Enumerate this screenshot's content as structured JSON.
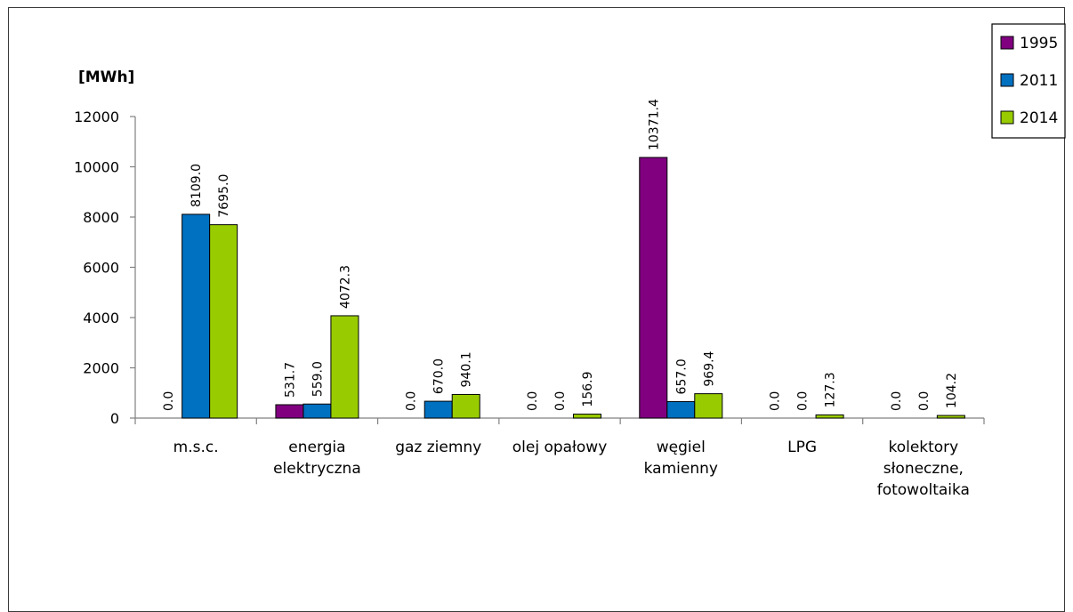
{
  "chart_data": {
    "type": "bar",
    "ylabel": "[MWh]",
    "ylim": [
      0,
      12000
    ],
    "yticks": [
      0,
      2000,
      4000,
      6000,
      8000,
      10000,
      12000
    ],
    "categories": [
      [
        "m.s.c."
      ],
      [
        "energia",
        "elektryczna"
      ],
      [
        "gaz ziemny"
      ],
      [
        "olej opałowy"
      ],
      [
        "węgiel",
        "kamienny"
      ],
      [
        "LPG"
      ],
      [
        "kolektory",
        "słoneczne,",
        "fotowoltaika"
      ]
    ],
    "series": [
      {
        "name": "1995",
        "color": "#800080",
        "values": [
          0.0,
          531.7,
          0.0,
          0.0,
          10371.4,
          0.0,
          0.0
        ],
        "labels": [
          "0.0",
          "531.7",
          "0.0",
          "0.0",
          "10371.4",
          "0.0",
          "0.0"
        ]
      },
      {
        "name": "2011",
        "color": "#0070C0",
        "values": [
          8109.0,
          559.0,
          670.0,
          0.0,
          657.0,
          0.0,
          0.0
        ],
        "labels": [
          "8109.0",
          "559.0",
          "670.0",
          "0.0",
          "657.0",
          "0.0",
          "0.0"
        ]
      },
      {
        "name": "2014",
        "color": "#99CC00",
        "values": [
          7695.0,
          4072.3,
          940.1,
          156.9,
          969.4,
          127.3,
          104.2
        ],
        "labels": [
          "7695.0",
          "4072.3",
          "940.1",
          "156.9",
          "969.4",
          "127.3",
          "104.2"
        ]
      }
    ],
    "grid": false,
    "legend_position": "top-right"
  }
}
